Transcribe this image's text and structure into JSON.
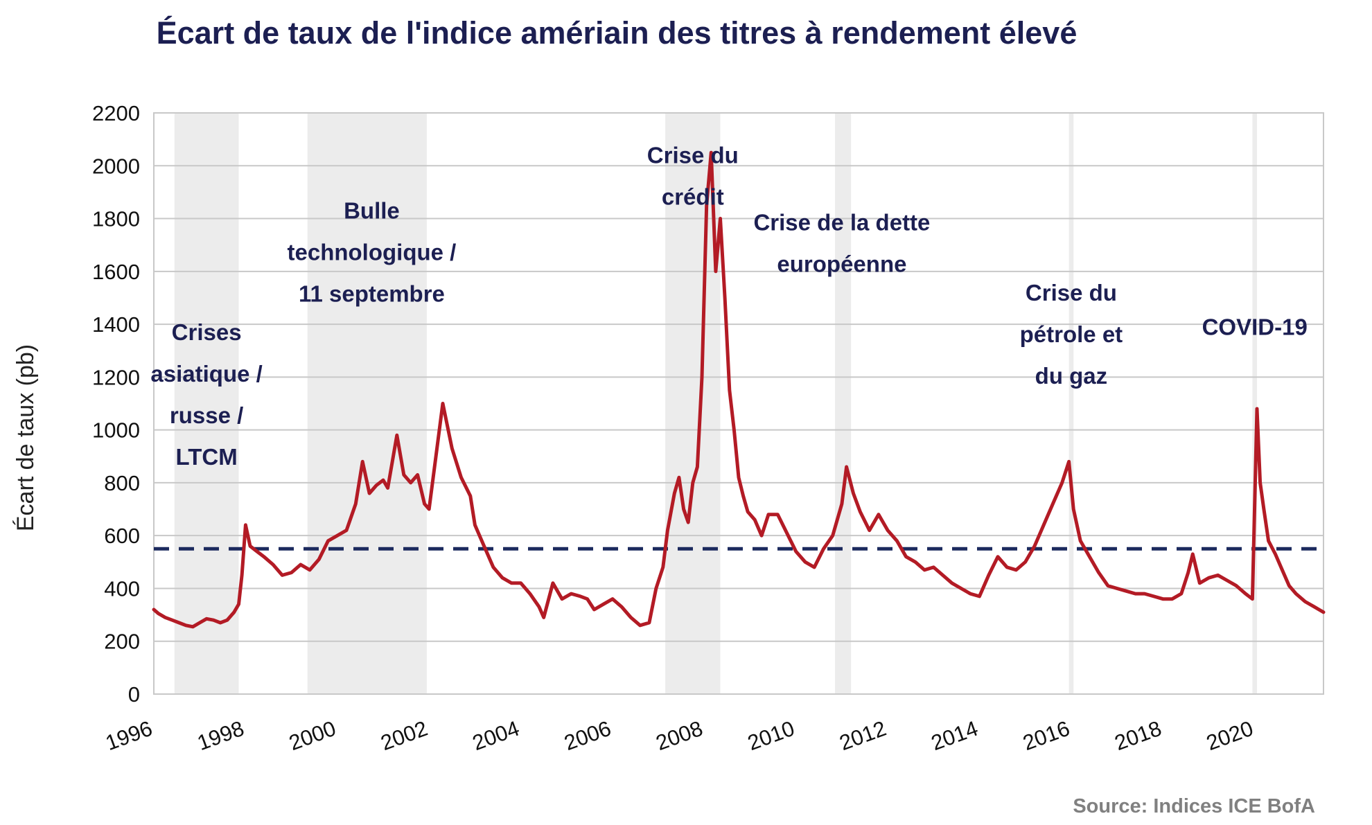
{
  "chart_data": {
    "type": "line",
    "title": "Écart de taux de l'indice amériain des titres à rendement élevé",
    "ylabel": "Écart de taux (pb)",
    "xlabel": "",
    "source": "Source: Indices ICE BofA",
    "xlim": [
      1996,
      2021.5
    ],
    "ylim": [
      0,
      2200
    ],
    "yticks": [
      0,
      200,
      400,
      600,
      800,
      1000,
      1200,
      1400,
      1600,
      1800,
      2000,
      2200
    ],
    "xticks": [
      1996,
      1998,
      2000,
      2002,
      2004,
      2006,
      2008,
      2010,
      2012,
      2014,
      2016,
      2018,
      2020
    ],
    "grid": true,
    "colors": {
      "series": "#b31b25",
      "average": "#1c2a5e",
      "shade": "#ececec",
      "grid": "#c8c8c8",
      "text": "#1c1f52"
    },
    "average_line": 550,
    "shaded_periods": [
      [
        1996.45,
        1997.85
      ],
      [
        1999.35,
        2001.95
      ],
      [
        2007.15,
        2008.35
      ],
      [
        2010.85,
        2011.2
      ],
      [
        2015.95,
        2016.05
      ],
      [
        2019.95,
        2020.05
      ]
    ],
    "annotations": [
      {
        "lines": [
          "Crises",
          "asiatique /",
          "russe /",
          "LTCM"
        ],
        "x": 1997.15,
        "y": 1340
      },
      {
        "lines": [
          "Bulle",
          "technologique /",
          "11 septembre"
        ],
        "x": 2000.75,
        "y": 1800
      },
      {
        "lines": [
          "Crise du",
          "crédit"
        ],
        "x": 2007.75,
        "y": 2010
      },
      {
        "lines": [
          "Crise de la dette",
          "européenne"
        ],
        "x": 2011.0,
        "y": 1755
      },
      {
        "lines": [
          "Crise du",
          "pétrole et",
          "du gaz"
        ],
        "x": 2016.0,
        "y": 1490
      },
      {
        "lines": [
          "COVID-19"
        ],
        "x": 2020.0,
        "y": 1360
      }
    ],
    "series": [
      {
        "x": [
          1996.0,
          1996.1,
          1996.25,
          1996.4,
          1996.55,
          1996.7,
          1996.85,
          1997.0,
          1997.15,
          1997.3,
          1997.45,
          1997.6,
          1997.75,
          1997.85,
          1997.92,
          1998.0,
          1998.1,
          1998.25,
          1998.4,
          1998.6,
          1998.8,
          1999.0,
          1999.2,
          1999.4,
          1999.6,
          1999.8,
          2000.0,
          2000.2,
          2000.4,
          2000.55,
          2000.7,
          2000.85,
          2001.0,
          2001.1,
          2001.3,
          2001.45,
          2001.6,
          2001.75,
          2001.9,
          2002.0,
          2002.15,
          2002.3,
          2002.5,
          2002.7,
          2002.9,
          2003.0,
          2003.2,
          2003.4,
          2003.6,
          2003.8,
          2004.0,
          2004.2,
          2004.4,
          2004.5,
          2004.7,
          2004.9,
          2005.1,
          2005.3,
          2005.45,
          2005.6,
          2005.8,
          2006.0,
          2006.2,
          2006.4,
          2006.6,
          2006.8,
          2006.95,
          2007.1,
          2007.2,
          2007.35,
          2007.45,
          2007.55,
          2007.65,
          2007.75,
          2007.85,
          2007.95,
          2008.05,
          2008.15,
          2008.25,
          2008.35,
          2008.45,
          2008.55,
          2008.65,
          2008.75,
          2008.85,
          2008.95,
          2009.1,
          2009.25,
          2009.4,
          2009.6,
          2009.8,
          2010.0,
          2010.2,
          2010.4,
          2010.6,
          2010.8,
          2011.0,
          2011.1,
          2011.25,
          2011.4,
          2011.6,
          2011.8,
          2012.0,
          2012.2,
          2012.4,
          2012.6,
          2012.8,
          2013.0,
          2013.2,
          2013.4,
          2013.6,
          2013.8,
          2014.0,
          2014.2,
          2014.4,
          2014.6,
          2014.8,
          2015.0,
          2015.2,
          2015.4,
          2015.6,
          2015.8,
          2015.95,
          2016.05,
          2016.2,
          2016.4,
          2016.6,
          2016.8,
          2017.0,
          2017.2,
          2017.4,
          2017.6,
          2017.8,
          2018.0,
          2018.2,
          2018.4,
          2018.55,
          2018.65,
          2018.8,
          2019.0,
          2019.2,
          2019.4,
          2019.6,
          2019.8,
          2019.95,
          2020.05,
          2020.12,
          2020.2,
          2020.3,
          2020.45,
          2020.6,
          2020.75,
          2020.9,
          2021.1,
          2021.3,
          2021.5
        ],
        "y": [
          320,
          305,
          290,
          280,
          270,
          260,
          255,
          270,
          285,
          280,
          270,
          280,
          310,
          340,
          450,
          640,
          560,
          540,
          520,
          490,
          450,
          460,
          490,
          470,
          510,
          580,
          600,
          620,
          720,
          880,
          760,
          790,
          810,
          780,
          980,
          830,
          800,
          830,
          720,
          700,
          900,
          1100,
          930,
          820,
          750,
          640,
          560,
          480,
          440,
          420,
          420,
          380,
          330,
          290,
          420,
          360,
          380,
          370,
          360,
          320,
          340,
          360,
          330,
          290,
          260,
          270,
          400,
          480,
          620,
          760,
          820,
          700,
          650,
          800,
          860,
          1200,
          1850,
          2050,
          1600,
          1800,
          1500,
          1150,
          1000,
          820,
          750,
          690,
          660,
          600,
          680,
          680,
          610,
          540,
          500,
          480,
          550,
          600,
          720,
          860,
          760,
          690,
          620,
          680,
          620,
          580,
          520,
          500,
          470,
          480,
          450,
          420,
          400,
          380,
          370,
          450,
          520,
          480,
          470,
          500,
          560,
          640,
          720,
          800,
          880,
          700,
          580,
          520,
          460,
          410,
          400,
          390,
          380,
          380,
          370,
          360,
          360,
          380,
          460,
          530,
          420,
          440,
          450,
          430,
          410,
          380,
          360,
          1080,
          800,
          700,
          580,
          530,
          470,
          410,
          380,
          350,
          330,
          310
        ]
      }
    ]
  }
}
